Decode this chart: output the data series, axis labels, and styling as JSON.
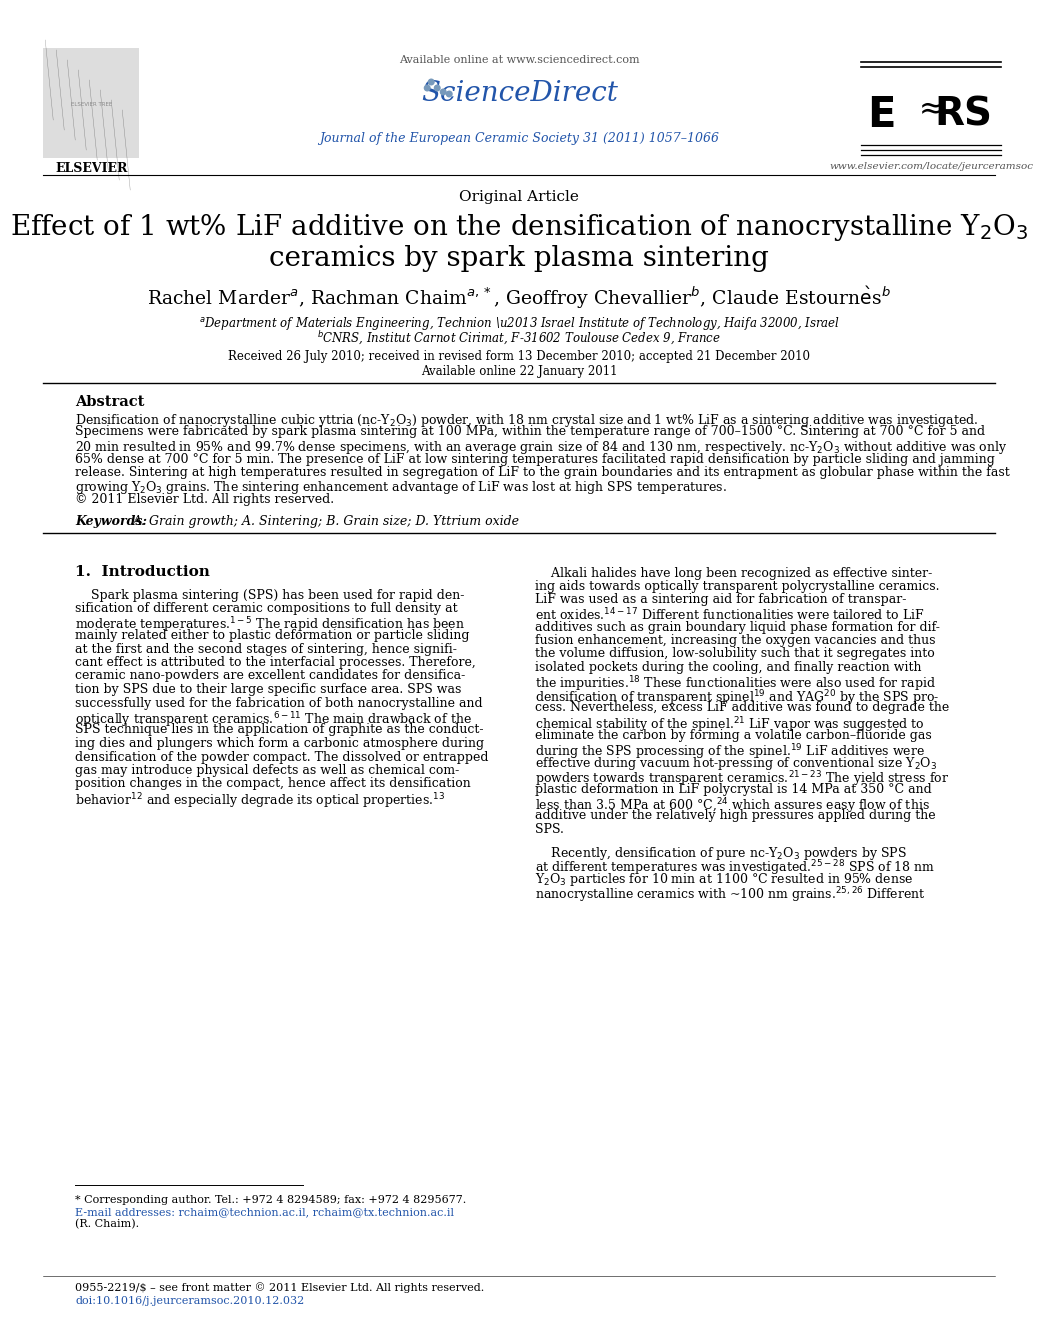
{
  "available_online": "Available online at www.sciencedirect.com",
  "sciencedirect": "ScienceDirect",
  "journal_line": "Journal of the European Ceramic Society 31 (2011) 1057–1066",
  "elsevier_url": "www.elsevier.com/locate/jeurceramsoc",
  "article_type": "Original Article",
  "title_line1": "Effect of 1 wt% LiF additive on the densification of nanocrystalline Y$_2$O$_3$",
  "title_line2": "ceramics by spark plasma sintering",
  "authors_line": "Rachel Marder$^{a}$, Rachman Chaim$^{a,*}$, Geoffroy Chevallier$^{b}$, Claude Estournès$^{b}$",
  "affil_a": "$^{a}$Department of Materials Engineering, Technion – Israel Institute of Technology, Haifa 32000, Israel",
  "affil_b": "$^{b}$CNRS, Institut Carnot Cirimat, F-31602 Toulouse Cedex 9, France",
  "received": "Received 26 July 2010; received in revised form 13 December 2010; accepted 21 December 2010",
  "available_online2": "Available online 22 January 2011",
  "abstract_title": "Abstract",
  "abstract_lines": [
    "Densification of nanocrystalline cubic yttria (nc-Y$_2$O$_3$) powder, with 18 nm crystal size and 1 wt% LiF as a sintering additive was investigated.",
    "Specimens were fabricated by spark plasma sintering at 100 MPa, within the temperature range of 700–1500 °C. Sintering at 700 °C for 5 and",
    "20 min resulted in 95% and 99.7% dense specimens, with an average grain size of 84 and 130 nm, respectively. nc-Y$_2$O$_3$ without additive was only",
    "65% dense at 700 °C for 5 min. The presence of LiF at low sintering temperatures facilitated rapid densification by particle sliding and jamming",
    "release. Sintering at high temperatures resulted in segregation of LiF to the grain boundaries and its entrapment as globular phase within the fast",
    "growing Y$_2$O$_3$ grains. The sintering enhancement advantage of LiF was lost at high SPS temperatures.",
    "© 2011 Elsevier Ltd. All rights reserved."
  ],
  "keywords_label": "Keywords:  ",
  "keywords_text": "A. Grain growth; A. Sintering; B. Grain size; D. Yttrium oxide",
  "section1_title": "1.  Introduction",
  "col1_lines": [
    "    Spark plasma sintering (SPS) has been used for rapid den-",
    "sification of different ceramic compositions to full density at",
    "moderate temperatures.$^{1-5}$ The rapid densification has been",
    "mainly related either to plastic deformation or particle sliding",
    "at the first and the second stages of sintering, hence signifi-",
    "cant effect is attributed to the interfacial processes. Therefore,",
    "ceramic nano-powders are excellent candidates for densifica-",
    "tion by SPS due to their large specific surface area. SPS was",
    "successfully used for the fabrication of both nanocrystalline and",
    "optically transparent ceramics.$^{6-11}$ The main drawback of the",
    "SPS technique lies in the application of graphite as the conduct-",
    "ing dies and plungers which form a carbonic atmosphere during",
    "densification of the powder compact. The dissolved or entrapped",
    "gas may introduce physical defects as well as chemical com-",
    "position changes in the compact, hence affect its densification",
    "behavior$^{12}$ and especially degrade its optical properties.$^{13}$"
  ],
  "col2_lines": [
    "    Alkali halides have long been recognized as effective sinter-",
    "ing aids towards optically transparent polycrystalline ceramics.",
    "LiF was used as a sintering aid for fabrication of transpar-",
    "ent oxides.$^{14-17}$ Different functionalities were tailored to LiF",
    "additives such as grain boundary liquid phase formation for dif-",
    "fusion enhancement, increasing the oxygen vacancies and thus",
    "the volume diffusion, low-solubility such that it segregates into",
    "isolated pockets during the cooling, and finally reaction with",
    "the impurities.$^{18}$ These functionalities were also used for rapid",
    "densification of transparent spinel$^{19}$ and YAG$^{20}$ by the SPS pro-",
    "cess. Nevertheless, excess LiF additive was found to degrade the",
    "chemical stability of the spinel.$^{21}$ LiF vapor was suggested to",
    "eliminate the carbon by forming a volatile carbon–fluoride gas",
    "during the SPS processing of the spinel.$^{19}$ LiF additives were",
    "effective during vacuum hot-pressing of conventional size Y$_2$O$_3$",
    "powders towards transparent ceramics.$^{21-23}$ The yield stress for",
    "plastic deformation in LiF polycrystal is 14 MPa at 350 °C and",
    "less than 3.5 MPa at 600 °C,$^{24}$ which assures easy flow of this",
    "additive under the relatively high pressures applied during the",
    "SPS."
  ],
  "col2_lines2": [
    "    Recently, densification of pure nc-Y$_2$O$_3$ powders by SPS",
    "at different temperatures was investigated.$^{25-28}$ SPS of 18 nm",
    "Y$_2$O$_3$ particles for 10 min at 1100 °C resulted in 95% dense",
    "nanocrystalline ceramics with ~100 nm grains.$^{25,26}$ Different"
  ],
  "footnote_star": "* Corresponding author. Tel.: +972 4 8294589; fax: +972 4 8295677.",
  "footnote_email": "E-mail addresses: rchaim@technion.ac.il, rchaim@tx.technion.ac.il",
  "footnote_rchaim": "(R. Chaim).",
  "footer_issn": "0955-2219/$ – see front matter © 2011 Elsevier Ltd. All rights reserved.",
  "footer_doi": "doi:10.1016/j.jeurceramsoc.2010.12.032",
  "bg_color": "#ffffff",
  "text_color": "#000000",
  "link_color": "#2255aa",
  "journal_color": "#2255aa"
}
